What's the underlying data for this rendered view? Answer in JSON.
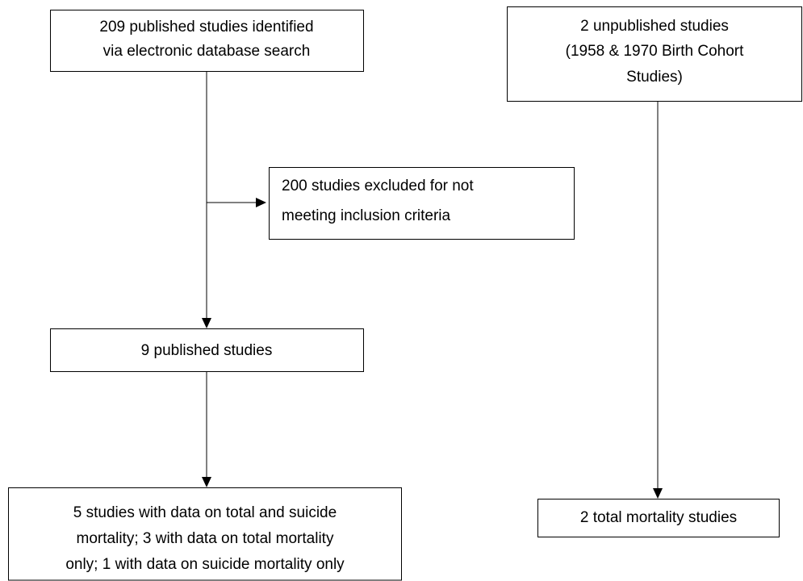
{
  "nodes": [
    {
      "lines": [
        "209 published studies identified",
        "via electronic database search"
      ]
    },
    {
      "lines": [
        "2 unpublished studies",
        "(1958 & 1970 Birth Cohort",
        "Studies)"
      ]
    },
    {
      "lines": [
        "200 studies excluded for not",
        "meeting inclusion criteria"
      ]
    },
    {
      "lines": [
        "9 published studies"
      ]
    },
    {
      "lines": [
        "5 studies with data on total and suicide",
        "mortality; 3 with data on total mortality",
        "only; 1 with data on suicide mortality only"
      ]
    },
    {
      "lines": [
        "2 total mortality studies"
      ]
    }
  ]
}
